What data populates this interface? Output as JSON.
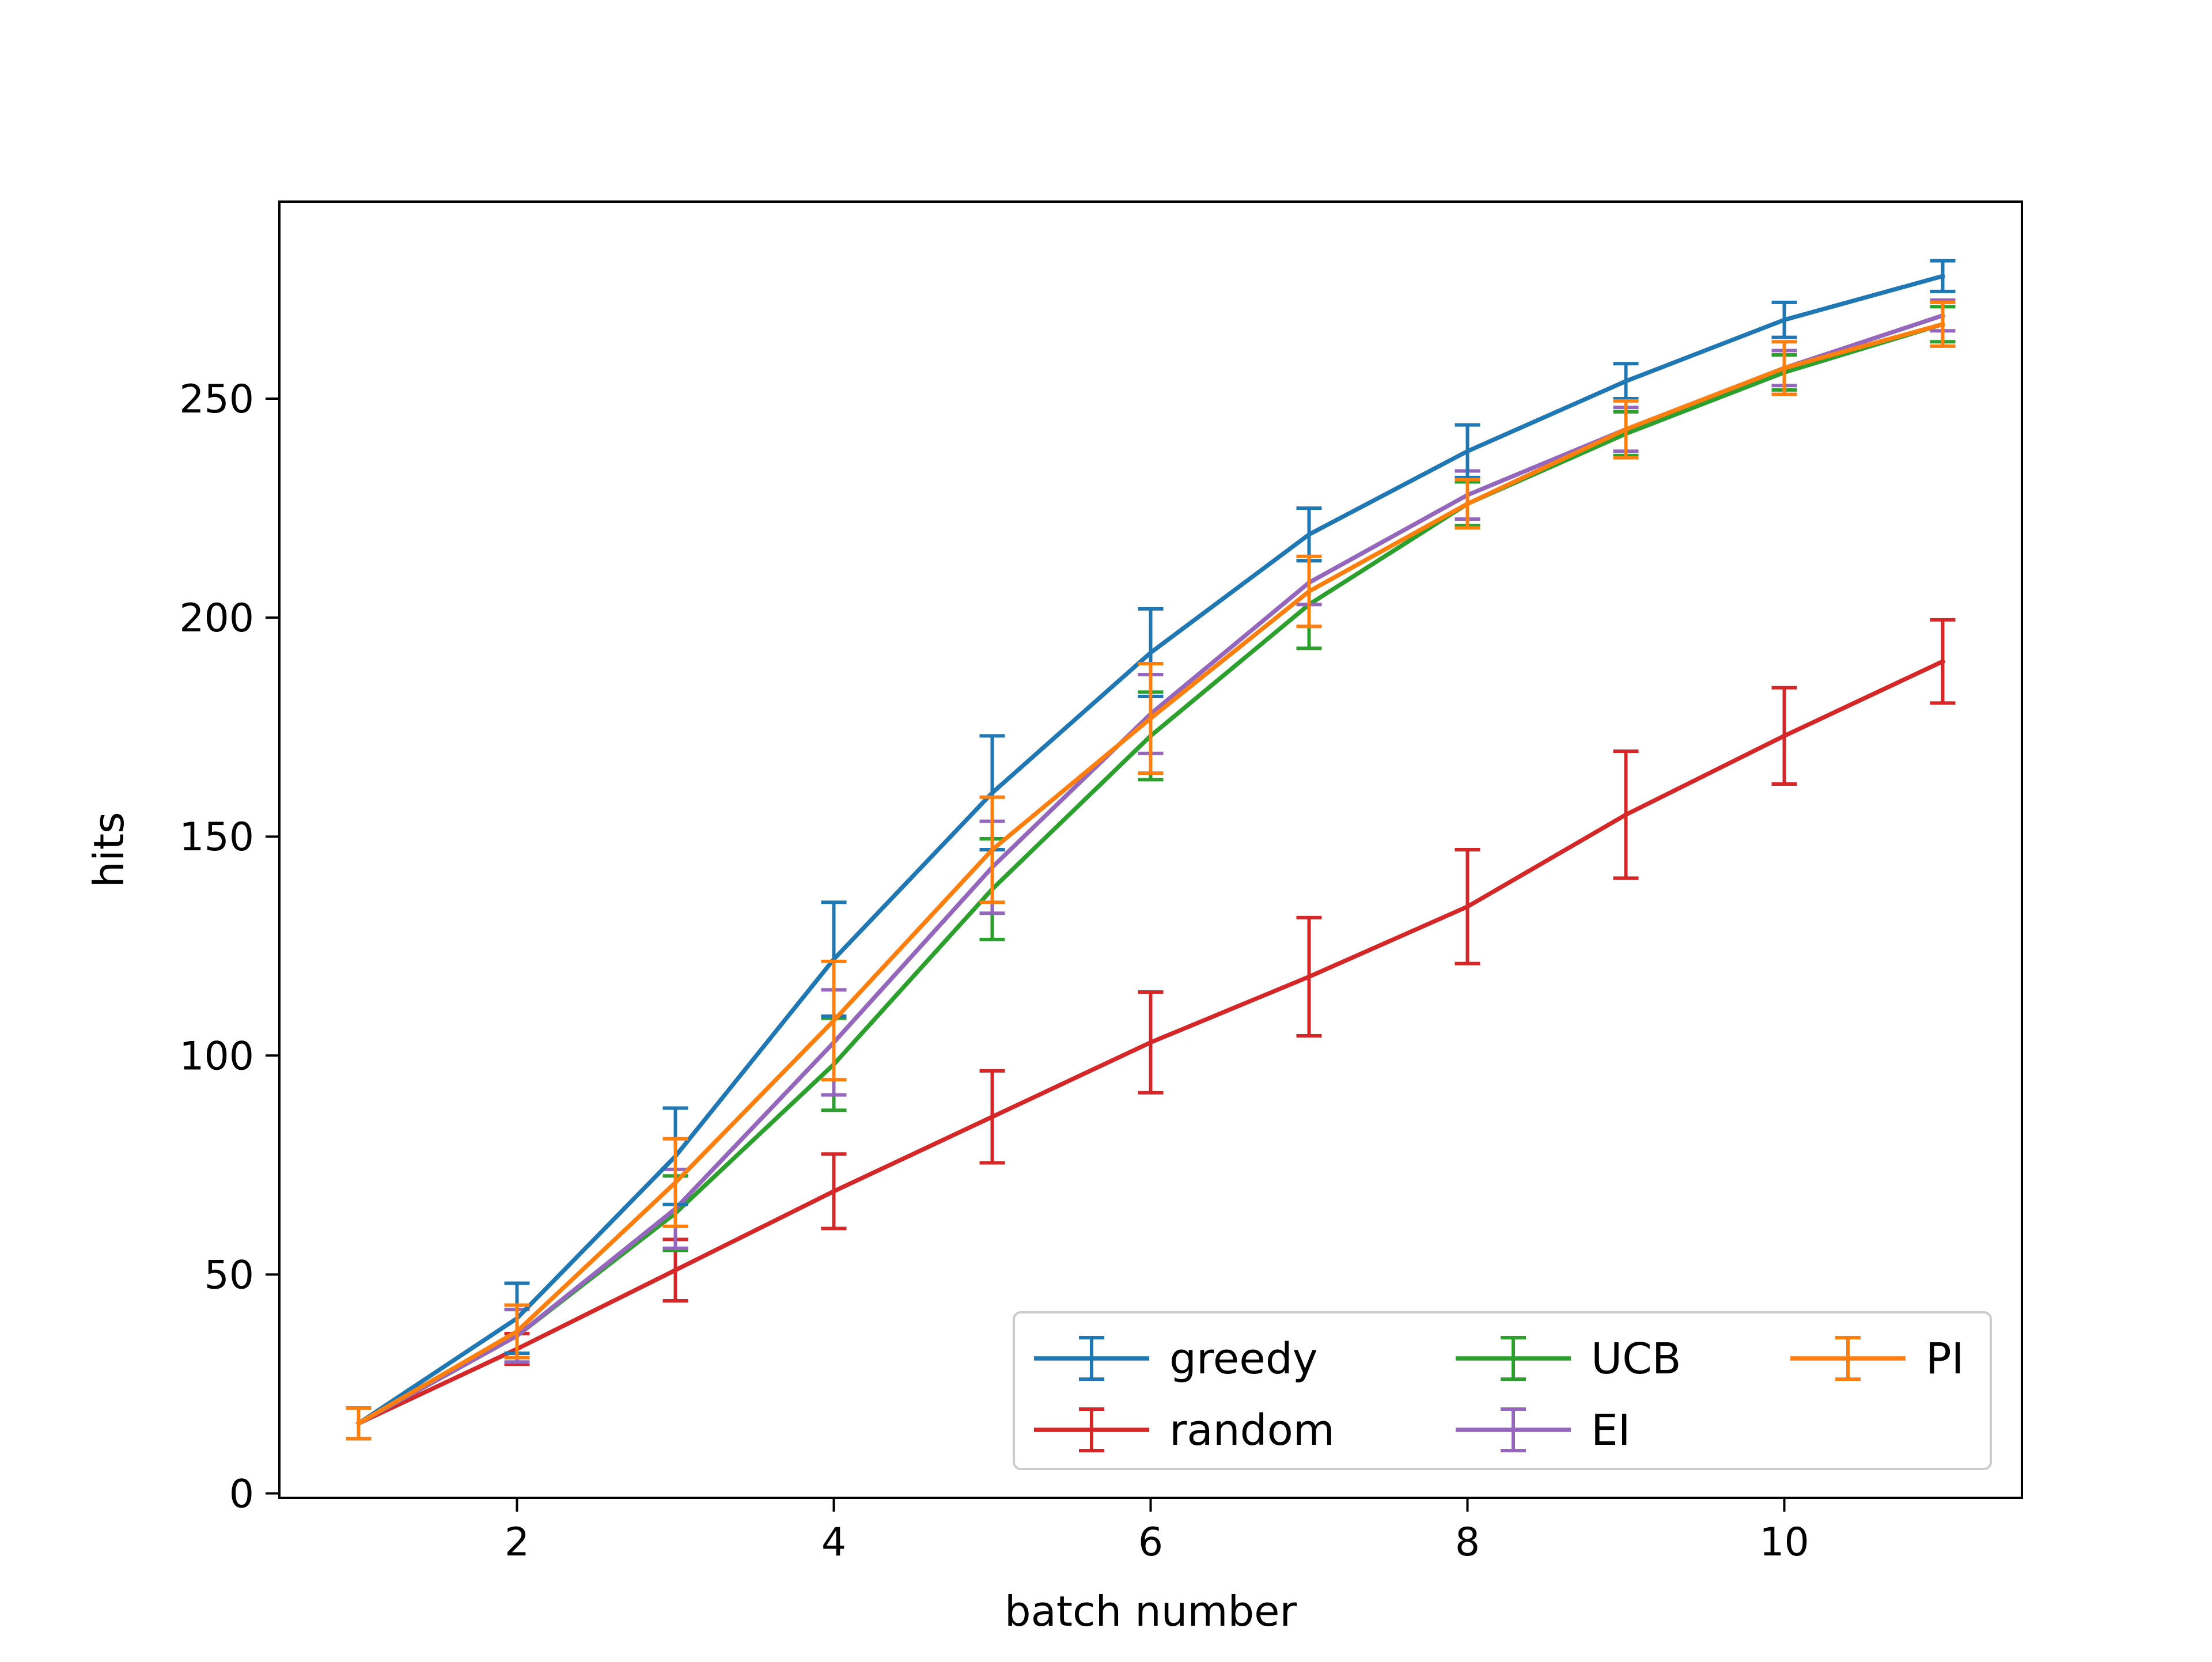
{
  "chart_data": {
    "type": "line",
    "error_bars": true,
    "title": "",
    "xlabel": "batch number",
    "ylabel": "hits",
    "xlim": [
      0.5,
      11.5
    ],
    "ylim": [
      -1,
      295
    ],
    "x_ticks": [
      2,
      4,
      6,
      8,
      10
    ],
    "y_ticks": [
      0,
      50,
      100,
      150,
      200,
      250
    ],
    "grid": false,
    "legend": {
      "position": "lower-right",
      "columns": 3
    },
    "x": [
      1,
      2,
      3,
      4,
      5,
      6,
      7,
      8,
      9,
      10,
      11
    ],
    "series": [
      {
        "name": "greedy",
        "color": "#1f77b4",
        "values": [
          16,
          40,
          77,
          122,
          160,
          192,
          219,
          238,
          254,
          268,
          278
        ],
        "errors": [
          3.5,
          8,
          11,
          13,
          13,
          10,
          6,
          6,
          4,
          4,
          3.5
        ]
      },
      {
        "name": "random",
        "color": "#d62728",
        "values": [
          16,
          33,
          51,
          69,
          86,
          103,
          118,
          134,
          155,
          173,
          190
        ],
        "errors": [
          3.5,
          3.5,
          7,
          8.5,
          10.5,
          11.5,
          13.5,
          13,
          14.5,
          11,
          9.5
        ]
      },
      {
        "name": "UCB",
        "color": "#2ca02c",
        "values": [
          16,
          36,
          64,
          98,
          138,
          173,
          203,
          226,
          242,
          256,
          267
        ],
        "errors": [
          3.5,
          6,
          8.5,
          10.5,
          11.5,
          10,
          10,
          5,
          5,
          4,
          4
        ]
      },
      {
        "name": "EI",
        "color": "#9467bd",
        "values": [
          16,
          36,
          65,
          103,
          143,
          178,
          208,
          228,
          243,
          257,
          269
        ],
        "errors": [
          3.5,
          6,
          9,
          12,
          10.5,
          9,
          5,
          5.5,
          5,
          4,
          3.5
        ]
      },
      {
        "name": "PI",
        "color": "#ff7f0e",
        "values": [
          16,
          37,
          71,
          108,
          147,
          177,
          206,
          226,
          243,
          257,
          267
        ],
        "errors": [
          3.5,
          6,
          10,
          13.5,
          12,
          12.5,
          8,
          5.5,
          6.5,
          6,
          5
        ]
      }
    ],
    "legend_order": [
      "greedy",
      "random",
      "UCB",
      "EI",
      "PI"
    ]
  }
}
